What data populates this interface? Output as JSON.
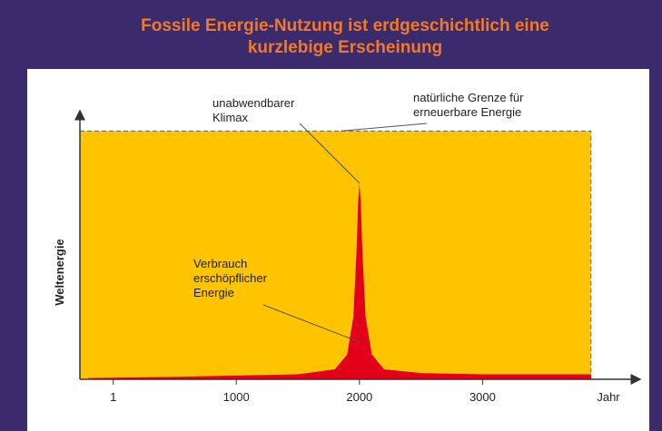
{
  "chart_data": {
    "type": "area",
    "title": [
      "Fossile Energie-Nutzung ist erdgeschichtlich eine",
      "kurzlebige Erscheinung"
    ],
    "x_label": "Jahr",
    "y_label": "Weltenergie",
    "x": [
      -200,
      500,
      1000,
      1500,
      1800,
      1900,
      1950,
      1975,
      1990,
      2000,
      2010,
      2025,
      2050,
      2100,
      2200,
      2500,
      3000,
      3880
    ],
    "values": [
      0.5,
      1,
      1.5,
      2,
      4,
      10,
      25,
      50,
      72,
      79,
      72,
      50,
      25,
      10,
      4,
      2.5,
      2,
      2
    ],
    "color": "#e3001b",
    "limit": 100,
    "limit_color": "#ffc400",
    "xlim": [
      -270,
      4280
    ],
    "ylim": [
      0,
      110
    ],
    "xticks": [
      1,
      1000,
      2000,
      3000
    ],
    "annotations": [
      {
        "text": [
          "unabwendbarer",
          "Klimax"
        ],
        "x": 2000,
        "y": 79
      },
      {
        "text": [
          "natürliche Grenze für",
          "erneuerbare Energie"
        ],
        "x": 1850,
        "y": 100
      },
      {
        "text": [
          "Verbrauch",
          "erschöpflicher",
          "Energie"
        ],
        "x": 2000,
        "y": 15
      }
    ]
  }
}
